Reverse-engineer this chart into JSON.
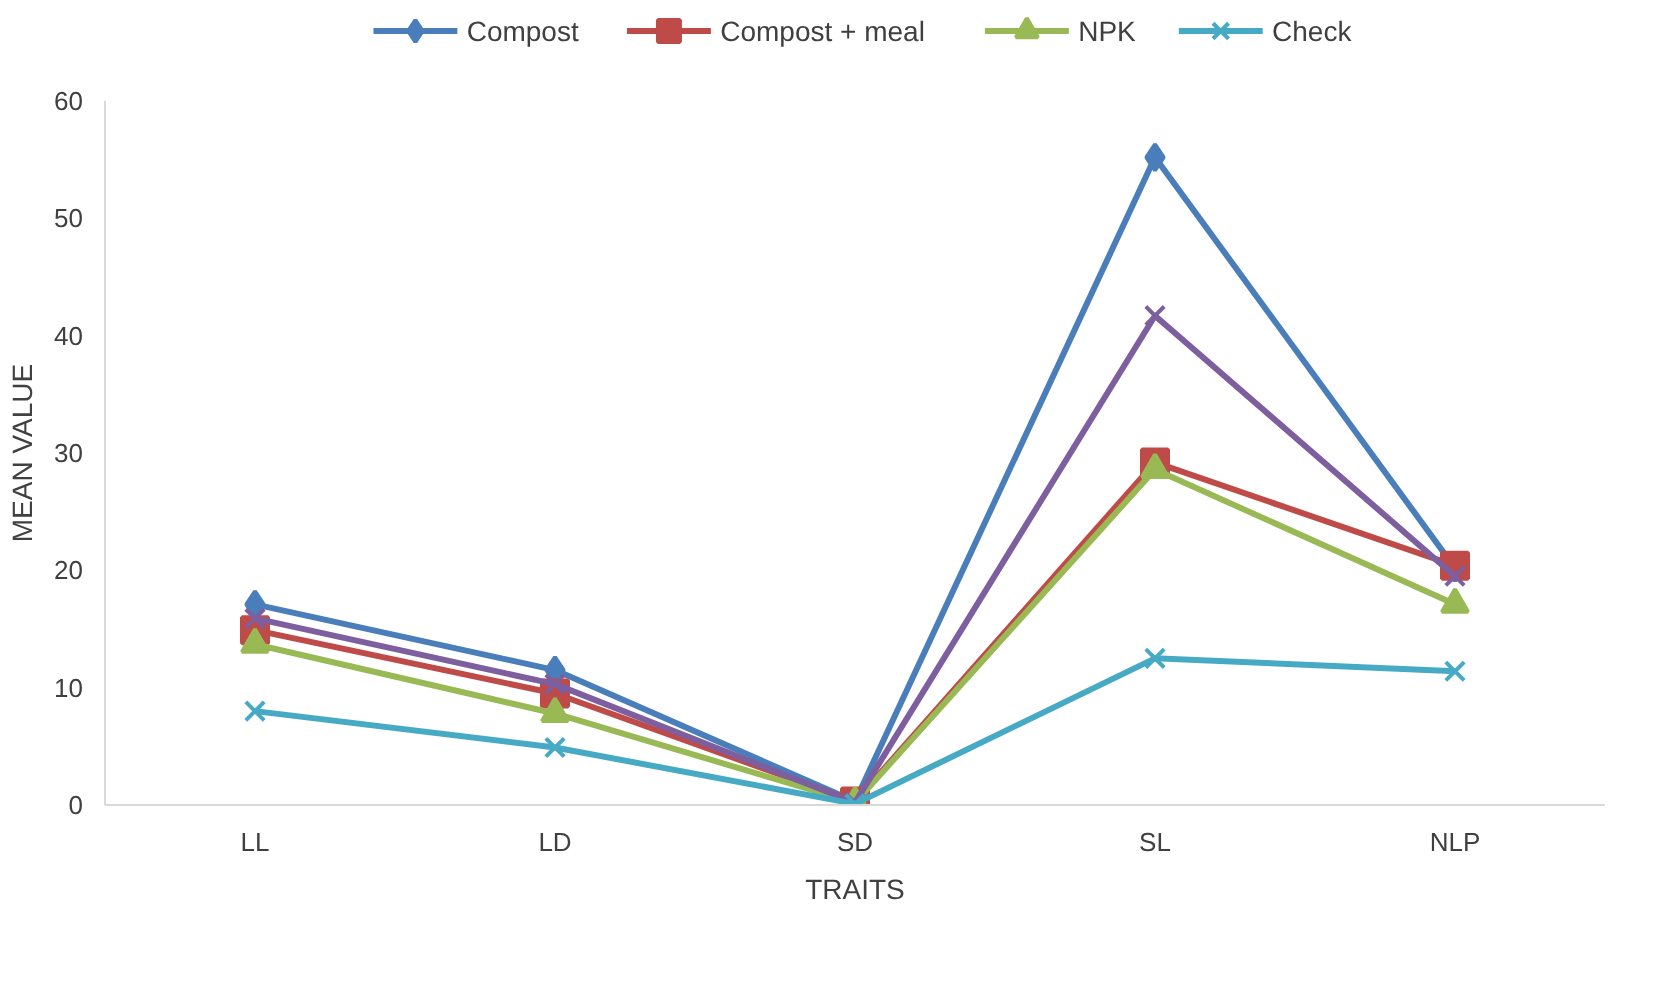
{
  "chart_data": {
    "type": "line",
    "xlabel": "TRAITS",
    "ylabel": "MEAN VALUE",
    "categories": [
      "LL",
      "LD",
      "SD",
      "SL",
      "NLP"
    ],
    "series": [
      {
        "name": "Compost",
        "color": "#4a7ebb",
        "marker": "diamond",
        "values": [
          17.1,
          11.5,
          0.3,
          55.2,
          20.2
        ]
      },
      {
        "name": "Compost + meal",
        "color": "#be4b48",
        "marker": "square",
        "values": [
          14.9,
          9.5,
          0.3,
          29.2,
          20.4
        ]
      },
      {
        "name": "NPK",
        "color": "#98b954",
        "marker": "triangle",
        "values": [
          13.7,
          7.8,
          0.2,
          28.6,
          17.1
        ]
      },
      {
        "color": "#7d5fa0",
        "marker": "cross",
        "values": [
          15.9,
          10.3,
          0.2,
          41.7,
          19.5
        ]
      },
      {
        "name": "Check",
        "color": "#46aac5",
        "marker": "cross",
        "values": [
          8.0,
          4.9,
          0.1,
          12.5,
          11.4
        ]
      }
    ],
    "ylim": [
      0,
      60
    ],
    "yticks": [
      0,
      10,
      20,
      30,
      40,
      50,
      60
    ],
    "grid": false,
    "legend": "top",
    "line_style": "solid"
  }
}
